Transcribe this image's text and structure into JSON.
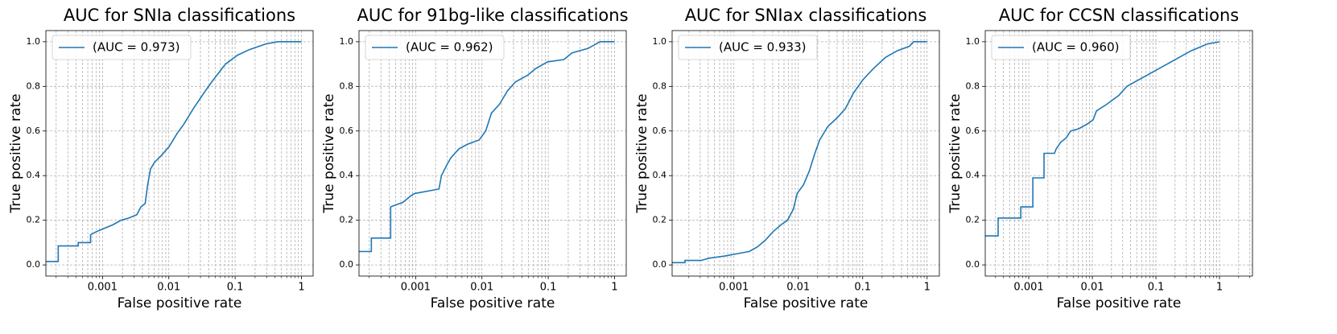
{
  "chart_data": [
    {
      "type": "line",
      "title": "AUC for SNIa classifications",
      "xlabel": "False positive rate",
      "ylabel": "True positive rate",
      "x": [
        0.00014,
        0.000215,
        0.000215,
        0.00043,
        0.00043,
        0.00066,
        0.00066,
        0.00082,
        0.00109,
        0.00144,
        0.0019,
        0.0025,
        0.0033,
        0.0038,
        0.0044,
        0.0048,
        0.0053,
        0.0061,
        0.0077,
        0.0101,
        0.0134,
        0.0168,
        0.0234,
        0.0356,
        0.047,
        0.0716,
        0.109,
        0.165,
        0.289,
        0.439,
        1
      ],
      "series": [
        {
          "name": "(AUC = 0.973)",
          "color": "#1f77b4",
          "values": [
            0.015,
            0.015,
            0.085,
            0.085,
            0.1,
            0.1,
            0.135,
            0.15,
            0.165,
            0.18,
            0.2,
            0.21,
            0.225,
            0.26,
            0.275,
            0.36,
            0.43,
            0.46,
            0.49,
            0.53,
            0.59,
            0.63,
            0.7,
            0.78,
            0.83,
            0.9,
            0.94,
            0.965,
            0.99,
            1.0,
            1.0
          ]
        }
      ],
      "xscale": "log",
      "xlim": [
        0.00014,
        1.5
      ],
      "ylim": [
        -0.05,
        1.05
      ],
      "xticks": [
        0.001,
        0.01,
        0.1,
        1
      ],
      "yticks": [
        {
          "value": 0,
          "label": "0.0"
        },
        0.2,
        0.4,
        0.6,
        0.8,
        {
          "value": 1,
          "label": "1.0"
        }
      ],
      "grid": true,
      "minor_grid": true,
      "legend": "upper left"
    },
    {
      "type": "line",
      "title": "AUC for 91bg-like classifications",
      "xlabel": "False positive rate",
      "ylabel": "True positive rate",
      "x": [
        0.00014,
        0.000215,
        0.000215,
        0.00042,
        0.00042,
        0.00064,
        0.00085,
        0.00097,
        0.00225,
        0.00245,
        0.00298,
        0.0034,
        0.0045,
        0.006,
        0.0091,
        0.0114,
        0.0139,
        0.0184,
        0.0243,
        0.032,
        0.0489,
        0.0646,
        0.098,
        0.172,
        0.228,
        0.398,
        0.607,
        1
      ],
      "series": [
        {
          "name": "(AUC = 0.962)",
          "color": "#1f77b4",
          "values": [
            0.06,
            0.06,
            0.12,
            0.12,
            0.26,
            0.28,
            0.31,
            0.32,
            0.34,
            0.4,
            0.45,
            0.48,
            0.52,
            0.54,
            0.56,
            0.6,
            0.68,
            0.72,
            0.78,
            0.82,
            0.85,
            0.88,
            0.91,
            0.92,
            0.95,
            0.97,
            1.0,
            1.0
          ]
        }
      ],
      "xscale": "log",
      "xlim": [
        0.00014,
        1.5
      ],
      "ylim": [
        -0.05,
        1.05
      ],
      "xticks": [
        0.001,
        0.01,
        0.1,
        1
      ],
      "yticks": [
        {
          "value": 0,
          "label": "0.0"
        },
        0.2,
        0.4,
        0.6,
        0.8,
        {
          "value": 1,
          "label": "1.0"
        }
      ],
      "grid": true,
      "minor_grid": true,
      "legend": "upper left"
    },
    {
      "type": "line",
      "title": "AUC for SNIax classifications",
      "xlabel": "False positive rate",
      "ylabel": "True positive rate",
      "x": [
        0.00011,
        0.000174,
        0.000174,
        0.00031,
        0.00041,
        0.00073,
        0.00112,
        0.00173,
        0.0023,
        0.00306,
        0.0041,
        0.0054,
        0.0068,
        0.0084,
        0.0096,
        0.0121,
        0.0148,
        0.0181,
        0.0215,
        0.0287,
        0.0404,
        0.0538,
        0.0718,
        0.101,
        0.147,
        0.226,
        0.347,
        0.533,
        0.616,
        1
      ],
      "series": [
        {
          "name": "(AUC = 0.933)",
          "color": "#1f77b4",
          "values": [
            0.01,
            0.01,
            0.02,
            0.02,
            0.03,
            0.04,
            0.05,
            0.06,
            0.08,
            0.11,
            0.15,
            0.18,
            0.2,
            0.25,
            0.32,
            0.36,
            0.42,
            0.5,
            0.56,
            0.62,
            0.66,
            0.7,
            0.77,
            0.83,
            0.88,
            0.93,
            0.96,
            0.98,
            1.0,
            1.0
          ]
        }
      ],
      "xscale": "log",
      "xlim": [
        0.00011,
        1.55
      ],
      "ylim": [
        -0.05,
        1.05
      ],
      "xticks": [
        0.001,
        0.01,
        0.1,
        1
      ],
      "yticks": [
        {
          "value": 0,
          "label": "0.0"
        },
        0.2,
        0.4,
        0.6,
        0.8,
        {
          "value": 1,
          "label": "1.0"
        }
      ],
      "grid": true,
      "minor_grid": true,
      "legend": "upper left"
    },
    {
      "type": "line",
      "title": "AUC for CCSN classifications",
      "xlabel": "False positive rate",
      "ylabel": "True positive rate",
      "x": [
        0.000207,
        0.00033,
        0.00033,
        0.00075,
        0.00075,
        0.00116,
        0.00116,
        0.00174,
        0.00174,
        0.00254,
        0.0027,
        0.0032,
        0.0039,
        0.00455,
        0.0061,
        0.0082,
        0.0103,
        0.0116,
        0.0169,
        0.0262,
        0.035,
        0.0627,
        0.112,
        0.201,
        0.36,
        0.646,
        1
      ],
      "series": [
        {
          "name": "(AUC = 0.960)",
          "color": "#1f77b4",
          "values": [
            0.13,
            0.13,
            0.21,
            0.21,
            0.26,
            0.26,
            0.39,
            0.39,
            0.5,
            0.5,
            0.52,
            0.55,
            0.57,
            0.6,
            0.61,
            0.63,
            0.65,
            0.69,
            0.72,
            0.76,
            0.8,
            0.84,
            0.88,
            0.92,
            0.96,
            0.99,
            1.0
          ]
        }
      ],
      "xscale": "log",
      "xlim": [
        0.000207,
        3.3
      ],
      "ylim": [
        -0.05,
        1.05
      ],
      "xticks": [
        0.001,
        0.01,
        0.1,
        1
      ],
      "yticks": [
        {
          "value": 0,
          "label": "0.0"
        },
        0.2,
        0.4,
        0.6,
        0.8,
        {
          "value": 1,
          "label": "1.0"
        }
      ],
      "grid": true,
      "minor_grid": true,
      "legend": "upper left"
    }
  ]
}
